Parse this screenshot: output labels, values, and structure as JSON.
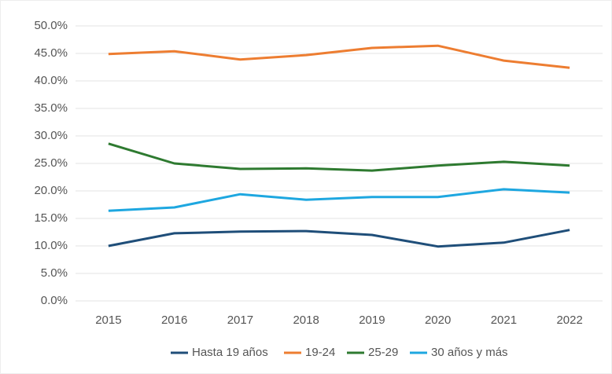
{
  "chart_data": {
    "type": "line",
    "categories": [
      "2015",
      "2016",
      "2017",
      "2018",
      "2019",
      "2020",
      "2021",
      "2022"
    ],
    "series": [
      {
        "name": "Hasta 19 años",
        "color": "#1f4e79",
        "values": [
          10.0,
          12.3,
          12.6,
          12.7,
          12.0,
          9.9,
          10.6,
          12.9
        ]
      },
      {
        "name": "19-24",
        "color": "#ed7d31",
        "values": [
          44.9,
          45.4,
          43.9,
          44.7,
          46.0,
          46.4,
          43.7,
          42.4
        ]
      },
      {
        "name": "25-29",
        "color": "#2e7a30",
        "values": [
          28.6,
          25.0,
          24.0,
          24.1,
          23.7,
          24.6,
          25.3,
          24.6
        ]
      },
      {
        "name": "30 años y más",
        "color": "#1ea7e0",
        "values": [
          16.4,
          17.0,
          19.4,
          18.4,
          18.9,
          18.9,
          20.3,
          19.7
        ]
      }
    ],
    "ylim": [
      0,
      50
    ],
    "yticks": [
      {
        "value": 0,
        "label": "0.0%"
      },
      {
        "value": 5,
        "label": "5.0%"
      },
      {
        "value": 10,
        "label": "10.0%"
      },
      {
        "value": 15,
        "label": "15.0%"
      },
      {
        "value": 20,
        "label": "20.0%"
      },
      {
        "value": 25,
        "label": "25.0%"
      },
      {
        "value": 30,
        "label": "30.0%"
      },
      {
        "value": 35,
        "label": "35.0%"
      },
      {
        "value": 40,
        "label": "40.0%"
      },
      {
        "value": 45,
        "label": "45.0%"
      },
      {
        "value": 50,
        "label": "50.0%"
      }
    ],
    "grid": true,
    "legend": "bottom"
  }
}
